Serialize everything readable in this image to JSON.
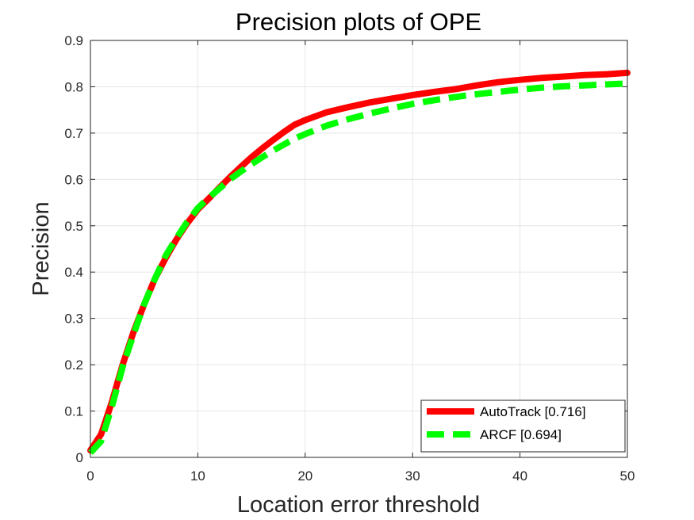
{
  "chart_data": {
    "type": "line",
    "title": "Precision plots of OPE",
    "xlabel": "Location error threshold",
    "ylabel": "Precision",
    "xlim": [
      0,
      50
    ],
    "ylim": [
      0,
      0.9
    ],
    "xticks": [
      "0",
      "10",
      "20",
      "30",
      "40",
      "50"
    ],
    "yticks": [
      "0",
      "0.1",
      "0.2",
      "0.3",
      "0.4",
      "0.5",
      "0.6",
      "0.7",
      "0.8",
      "0.9"
    ],
    "grid": true,
    "legend_position": "bottom-right",
    "x": [
      0,
      1,
      2,
      3,
      4,
      5,
      6,
      7,
      8,
      9,
      10,
      11,
      12,
      13,
      14,
      15,
      16,
      17,
      18,
      19,
      20,
      22,
      24,
      26,
      28,
      30,
      32,
      34,
      36,
      38,
      40,
      42,
      44,
      46,
      48,
      50
    ],
    "series": [
      {
        "name": "AutoTrack [0.716]",
        "color": "#ff0000",
        "style": "solid",
        "values": [
          0.015,
          0.05,
          0.12,
          0.2,
          0.27,
          0.33,
          0.385,
          0.43,
          0.47,
          0.505,
          0.535,
          0.558,
          0.582,
          0.605,
          0.627,
          0.648,
          0.667,
          0.685,
          0.702,
          0.718,
          0.728,
          0.745,
          0.756,
          0.766,
          0.774,
          0.782,
          0.789,
          0.795,
          0.803,
          0.81,
          0.815,
          0.819,
          0.822,
          0.825,
          0.827,
          0.83
        ]
      },
      {
        "name": "ARCF [0.694]",
        "color": "#00ff00",
        "style": "dashed",
        "values": [
          0.01,
          0.035,
          0.11,
          0.195,
          0.265,
          0.33,
          0.385,
          0.435,
          0.473,
          0.508,
          0.538,
          0.56,
          0.58,
          0.6,
          0.617,
          0.633,
          0.648,
          0.662,
          0.675,
          0.688,
          0.698,
          0.716,
          0.73,
          0.742,
          0.753,
          0.763,
          0.771,
          0.778,
          0.784,
          0.789,
          0.794,
          0.798,
          0.801,
          0.803,
          0.805,
          0.807
        ]
      }
    ]
  }
}
